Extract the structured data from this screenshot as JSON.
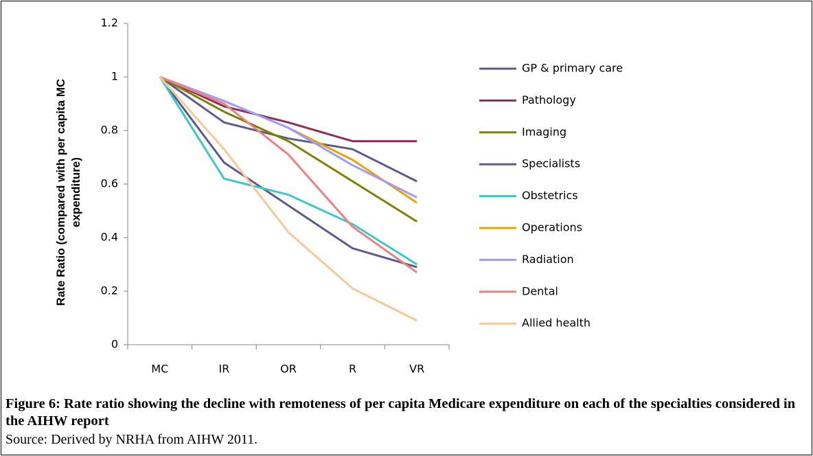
{
  "chart_data": {
    "type": "line",
    "y_label": "Rate Ratio (compared with per capita MC expenditure)",
    "caption": "Figure 6: Rate ratio showing the decline with remoteness of per capita Medicare expenditure on each of the specialties considered in the AIHW report",
    "source": "Source: Derived by NRHA from AIHW 2011.",
    "categories": [
      "MC",
      "IR",
      "OR",
      "R",
      "VR"
    ],
    "ylim": [
      0,
      1.2
    ],
    "yticks": [
      0,
      0.2,
      0.4,
      0.6,
      0.8,
      1,
      1.2
    ],
    "grid": false,
    "legend": "right",
    "series": [
      {
        "name": "GP & primary care",
        "color": "#5b5b8f",
        "values": [
          1,
          0.83,
          0.77,
          0.73,
          0.61
        ]
      },
      {
        "name": "Pathology",
        "color": "#8c2d5c",
        "values": [
          1,
          0.89,
          0.83,
          0.76,
          0.76
        ]
      },
      {
        "name": "Imaging",
        "color": "#7f7f00",
        "values": [
          1,
          0.87,
          0.76,
          0.61,
          0.46
        ]
      },
      {
        "name": "Specialists",
        "color": "#5b5b8f",
        "values": [
          1,
          0.68,
          0.52,
          0.36,
          0.29
        ]
      },
      {
        "name": "Obstetrics",
        "color": "#3cc8c8",
        "values": [
          1,
          0.62,
          0.56,
          0.45,
          0.3
        ]
      },
      {
        "name": "Operations",
        "color": "#f0a000",
        "values": [
          1,
          0.91,
          0.81,
          0.69,
          0.53
        ]
      },
      {
        "name": "Radiation",
        "color": "#9c9cff",
        "values": [
          1,
          0.91,
          0.81,
          0.67,
          0.55
        ]
      },
      {
        "name": "Dental",
        "color": "#f08080",
        "values": [
          1,
          0.9,
          0.71,
          0.44,
          0.27
        ]
      },
      {
        "name": "Allied health",
        "color": "#fac896",
        "values": [
          1,
          0.73,
          0.42,
          0.21,
          0.09
        ]
      }
    ]
  }
}
